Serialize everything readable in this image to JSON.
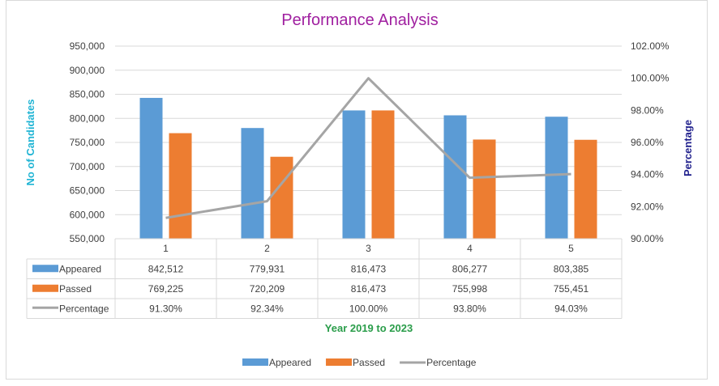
{
  "chart_data": {
    "type": "bar+line",
    "title": "Performance Analysis",
    "xlabel": "Year 2019 to 2023",
    "ylabel_left": "No of Candidates",
    "ylabel_right": "Percentage",
    "categories": [
      "1",
      "2",
      "3",
      "4",
      "5"
    ],
    "ylim_left": [
      550000,
      950000
    ],
    "ylim_right": [
      90,
      102
    ],
    "y_ticks_left": [
      "550,000",
      "600,000",
      "650,000",
      "700,000",
      "750,000",
      "800,000",
      "850,000",
      "900,000",
      "950,000"
    ],
    "y_ticks_right": [
      "90.00%",
      "92.00%",
      "94.00%",
      "96.00%",
      "98.00%",
      "100.00%",
      "102.00%"
    ],
    "grid": true,
    "legend_position": "bottom",
    "series": [
      {
        "name": "Appeared",
        "kind": "bar",
        "axis": "left",
        "color": "#5b9bd5",
        "values": [
          842512,
          779931,
          816473,
          806277,
          803385
        ],
        "labels": [
          "842,512",
          "779,931",
          "816,473",
          "806,277",
          "803,385"
        ]
      },
      {
        "name": "Passed",
        "kind": "bar",
        "axis": "left",
        "color": "#ed7d31",
        "values": [
          769225,
          720209,
          816473,
          755998,
          755451
        ],
        "labels": [
          "769,225",
          "720,209",
          "816,473",
          "755,998",
          "755,451"
        ]
      },
      {
        "name": "Percentage",
        "kind": "line",
        "axis": "right",
        "color": "#a5a5a5",
        "values": [
          91.3,
          92.34,
          100.0,
          93.8,
          94.03
        ],
        "labels": [
          "91.30%",
          "92.34%",
          "100.00%",
          "93.80%",
          "94.03%"
        ]
      }
    ],
    "colors": {
      "title": "#a020a0",
      "ylabel_left": "#1fb4d4",
      "ylabel_right": "#1f1f8c",
      "xlabel": "#2a9d4a",
      "grid": "#d9d9d9",
      "text": "#404040"
    }
  }
}
